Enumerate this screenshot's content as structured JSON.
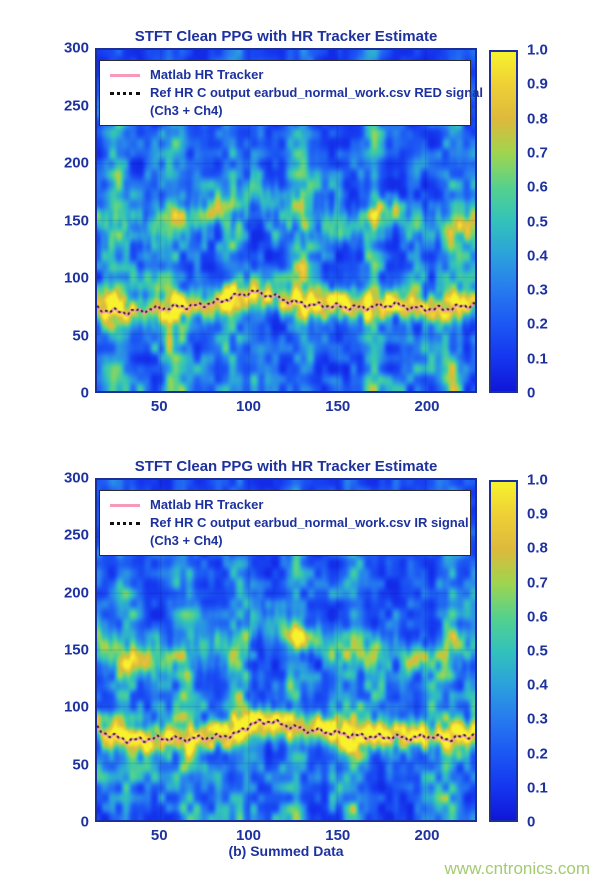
{
  "caption": "(b) Summed Data",
  "watermark": "www.cntronics.com",
  "colors": {
    "text": "#1d329e",
    "tracker_pink": "#f79ab9",
    "ref_line": "#1c1703",
    "plot_border": "#1a2f9a",
    "watermark": "#a3cb70"
  },
  "colormap": [
    [
      0.0,
      "#1016d8"
    ],
    [
      0.1,
      "#1537ef"
    ],
    [
      0.2,
      "#1c58f4"
    ],
    [
      0.3,
      "#277bef"
    ],
    [
      0.4,
      "#2ba1dc"
    ],
    [
      0.5,
      "#32c2ba"
    ],
    [
      0.6,
      "#55d18d"
    ],
    [
      0.7,
      "#9ed54f"
    ],
    [
      0.8,
      "#ddb93c"
    ],
    [
      0.9,
      "#eecf36"
    ],
    [
      1.0,
      "#f7f22c"
    ]
  ],
  "chart_data": [
    {
      "type": "heatmap",
      "title": "STFT Clean PPG with HR Tracker Estimate",
      "xlabel": "",
      "ylabel": "",
      "xlim": [
        14,
        228
      ],
      "ylim": [
        0,
        300
      ],
      "xticks": [
        50,
        100,
        150,
        200
      ],
      "yticks": [
        300,
        250,
        200,
        150,
        100,
        50,
        0
      ],
      "grid": false,
      "colorbar": {
        "min": 0,
        "max": 1,
        "tick_labels": [
          "1.0",
          "0.9",
          "0.8",
          "0.7",
          "0.6",
          "0.5",
          "0.4",
          "0.3",
          "0.2",
          "0.1",
          "0"
        ]
      },
      "legend": [
        {
          "label": "Matlab HR Tracker",
          "style": "solid",
          "color": "#f79ab9"
        },
        {
          "label": "Ref HR C output earbud_normal_work.csv RED signal",
          "label2": "(Ch3 + Ch4)",
          "style": "dotted",
          "color": "#111111"
        }
      ],
      "hr_track": {
        "x": [
          14,
          22,
          32,
          42,
          52,
          62,
          72,
          82,
          92,
          102,
          112,
          122,
          132,
          142,
          152,
          162,
          172,
          182,
          192,
          202,
          212,
          220,
          228
        ],
        "y": [
          72,
          70,
          69,
          71,
          73,
          74,
          75,
          78,
          83,
          87,
          84,
          79,
          76,
          75,
          74,
          73,
          74,
          76,
          73,
          72,
          72,
          74,
          76
        ]
      },
      "spectrogram": {
        "stripes_x": [
          25,
          57,
          90,
          131,
          170,
          215
        ],
        "hr_amp": 0.85,
        "harmonic_amp": 0.52,
        "seed": 7
      }
    },
    {
      "type": "heatmap",
      "title": "STFT Clean PPG with HR Tracker Estimate",
      "xlabel": "",
      "ylabel": "",
      "xlim": [
        14,
        228
      ],
      "ylim": [
        0,
        300
      ],
      "xticks": [
        50,
        100,
        150,
        200
      ],
      "yticks": [
        300,
        250,
        200,
        150,
        100,
        50,
        0
      ],
      "grid": false,
      "colorbar": {
        "min": 0,
        "max": 1,
        "tick_labels": [
          "1.0",
          "0.9",
          "0.8",
          "0.7",
          "0.6",
          "0.5",
          "0.4",
          "0.3",
          "0.2",
          "0.1",
          "0"
        ]
      },
      "legend": [
        {
          "label": "Matlab HR Tracker",
          "style": "solid",
          "color": "#f79ab9"
        },
        {
          "label": "Ref HR C output earbud_normal_work.csv IR signal",
          "label2": "(Ch3 + Ch4)",
          "style": "dotted",
          "color": "#111111"
        }
      ],
      "hr_track": {
        "x": [
          14,
          22,
          32,
          42,
          52,
          62,
          72,
          82,
          92,
          102,
          112,
          122,
          132,
          142,
          152,
          162,
          172,
          182,
          192,
          202,
          212,
          220,
          228
        ],
        "y": [
          80,
          74,
          70,
          71,
          72,
          71,
          72,
          73,
          75,
          85,
          87,
          83,
          79,
          78,
          76,
          74,
          73,
          73,
          72,
          74,
          71,
          73,
          75
        ]
      },
      "spectrogram": {
        "stripes_x": [
          30,
          64,
          95,
          126,
          160,
          214
        ],
        "hr_amp": 0.92,
        "harmonic_amp": 0.45,
        "seed": 13
      }
    }
  ]
}
